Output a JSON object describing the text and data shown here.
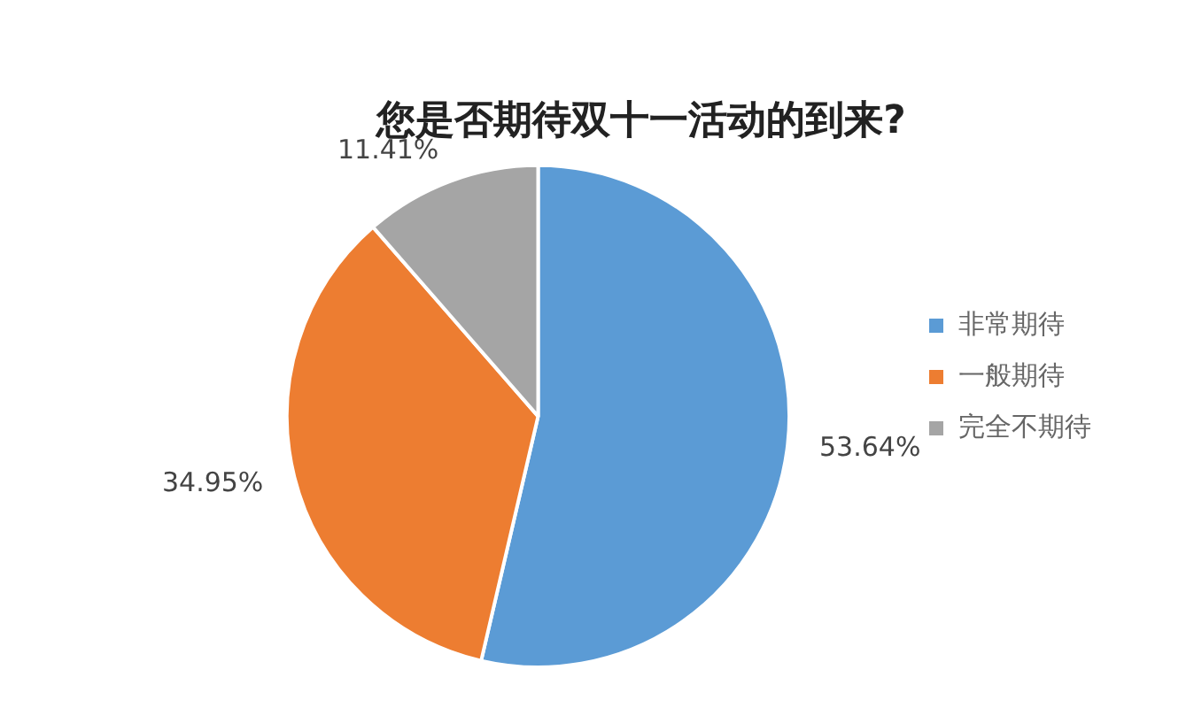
{
  "chart_data": {
    "type": "pie",
    "title": "您是否期待双十一活动的到来?",
    "categories": [
      "非常期待",
      "一般期待",
      "完全不期待"
    ],
    "values": [
      53.64,
      34.95,
      11.41
    ],
    "colors": [
      "#5b9bd5",
      "#ed7d31",
      "#a5a5a5"
    ],
    "value_labels": [
      "53.64%",
      "34.95%",
      "11.41%"
    ],
    "legend": "right"
  }
}
